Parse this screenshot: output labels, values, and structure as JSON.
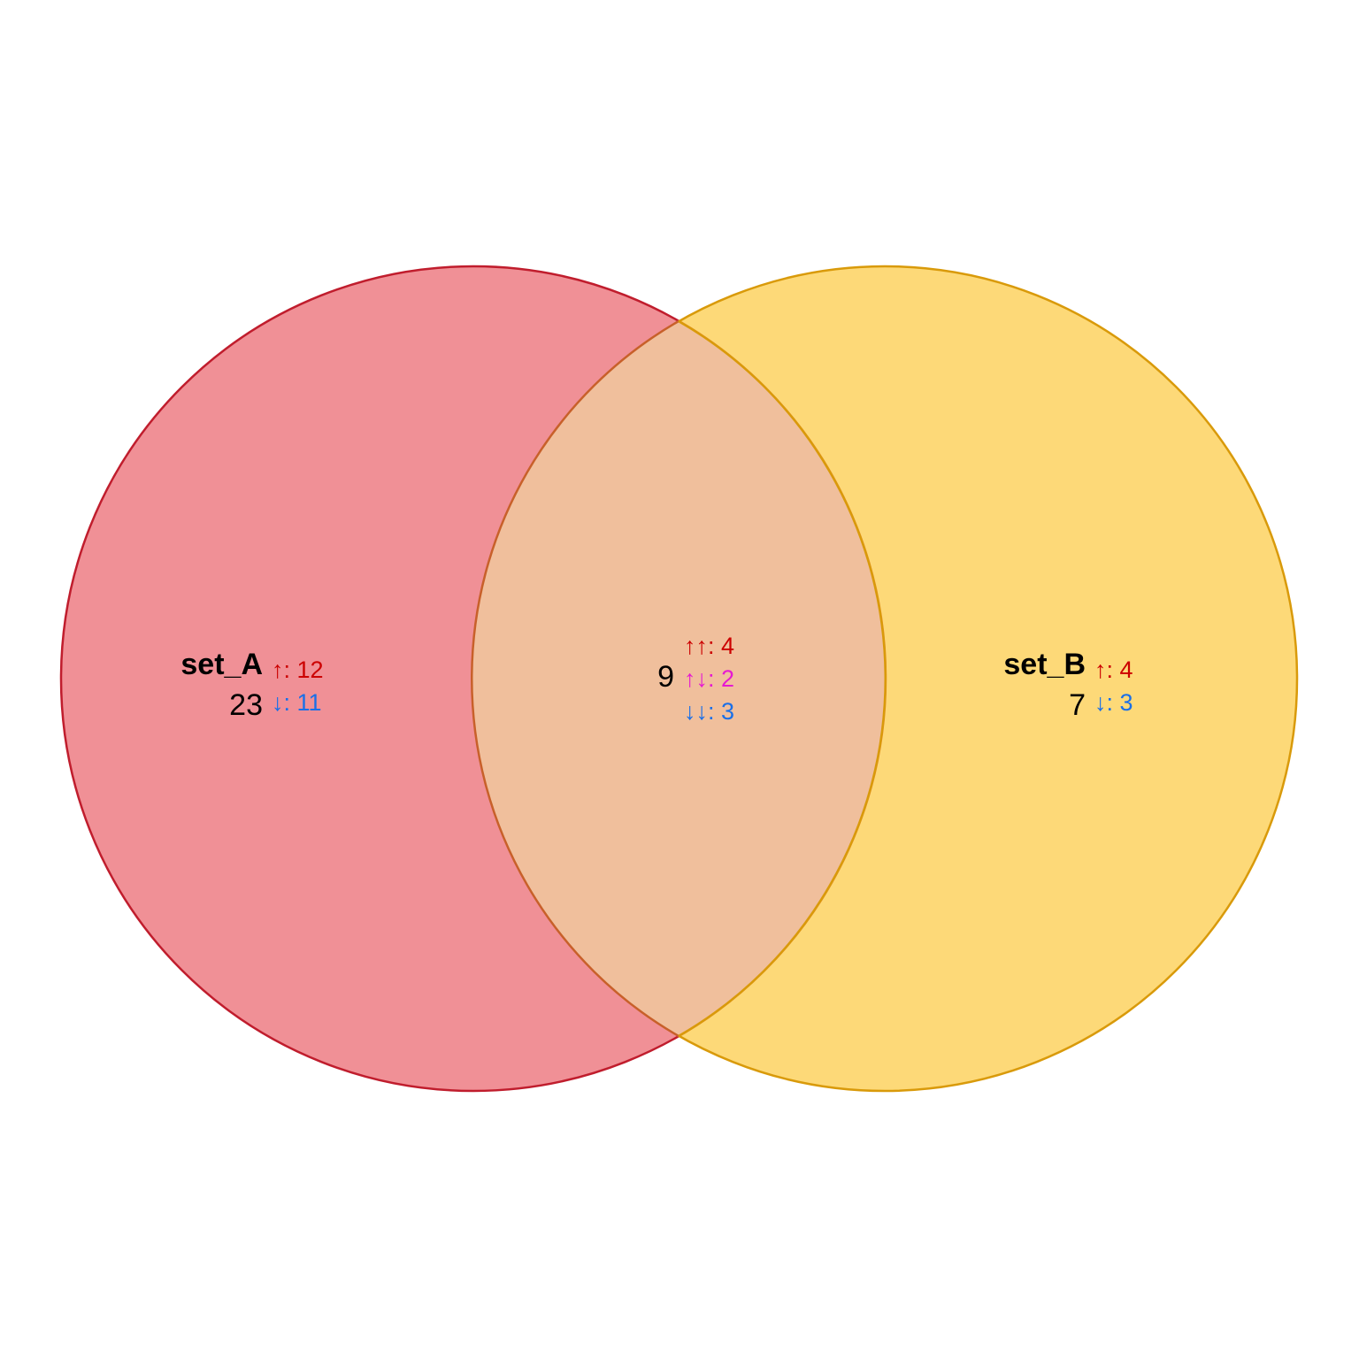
{
  "venn": {
    "sets": [
      {
        "id": "set_A",
        "label": "set_A",
        "fill": "#E3343F",
        "stroke": "#C01D2D",
        "fill_opacity": 0.55,
        "total": "23",
        "up_label": "↑: 12",
        "down_label": "↓: 11"
      },
      {
        "id": "set_B",
        "label": "set_B",
        "fill": "#FCC530",
        "stroke": "#D99A0A",
        "fill_opacity": 0.65,
        "total": "7",
        "up_label": "↑: 4",
        "down_label": "↓: 3"
      }
    ],
    "intersection": {
      "fill": "#F0BF9C",
      "stroke": "#C8602A",
      "total": "9",
      "up_up_label": "↑↑: 4",
      "up_down_label": "↑↓: 2",
      "down_down_label": "↓↓: 3"
    },
    "colors": {
      "up": "#CC0000",
      "down": "#1A6FE8",
      "mixed": "#E619D2",
      "text": "#000000"
    }
  }
}
